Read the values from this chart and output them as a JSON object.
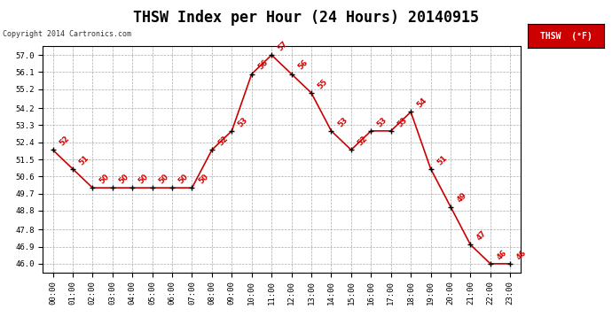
{
  "title": "THSW Index per Hour (24 Hours) 20140915",
  "copyright": "Copyright 2014 Cartronics.com",
  "legend_label": "THSW  (°F)",
  "hours": [
    "00:00",
    "01:00",
    "02:00",
    "03:00",
    "04:00",
    "05:00",
    "06:00",
    "07:00",
    "08:00",
    "09:00",
    "10:00",
    "11:00",
    "12:00",
    "13:00",
    "14:00",
    "15:00",
    "16:00",
    "17:00",
    "18:00",
    "19:00",
    "20:00",
    "21:00",
    "22:00",
    "23:00"
  ],
  "values": [
    52,
    51,
    50,
    50,
    50,
    50,
    50,
    50,
    52,
    53,
    56,
    57,
    56,
    55,
    53,
    52,
    53,
    53,
    54,
    51,
    49,
    47,
    46,
    46
  ],
  "ylim_min": 45.55,
  "ylim_max": 57.45,
  "yticks": [
    46.0,
    46.9,
    47.8,
    48.8,
    49.7,
    50.6,
    51.5,
    52.4,
    53.3,
    54.2,
    55.2,
    56.1,
    57.0
  ],
  "line_color": "#cc0000",
  "marker_color": "#000000",
  "bg_color": "#ffffff",
  "grid_color": "#aaaaaa",
  "title_fontsize": 12,
  "annotation_color": "#cc0000",
  "legend_bg": "#cc0000",
  "legend_text_color": "#ffffff"
}
